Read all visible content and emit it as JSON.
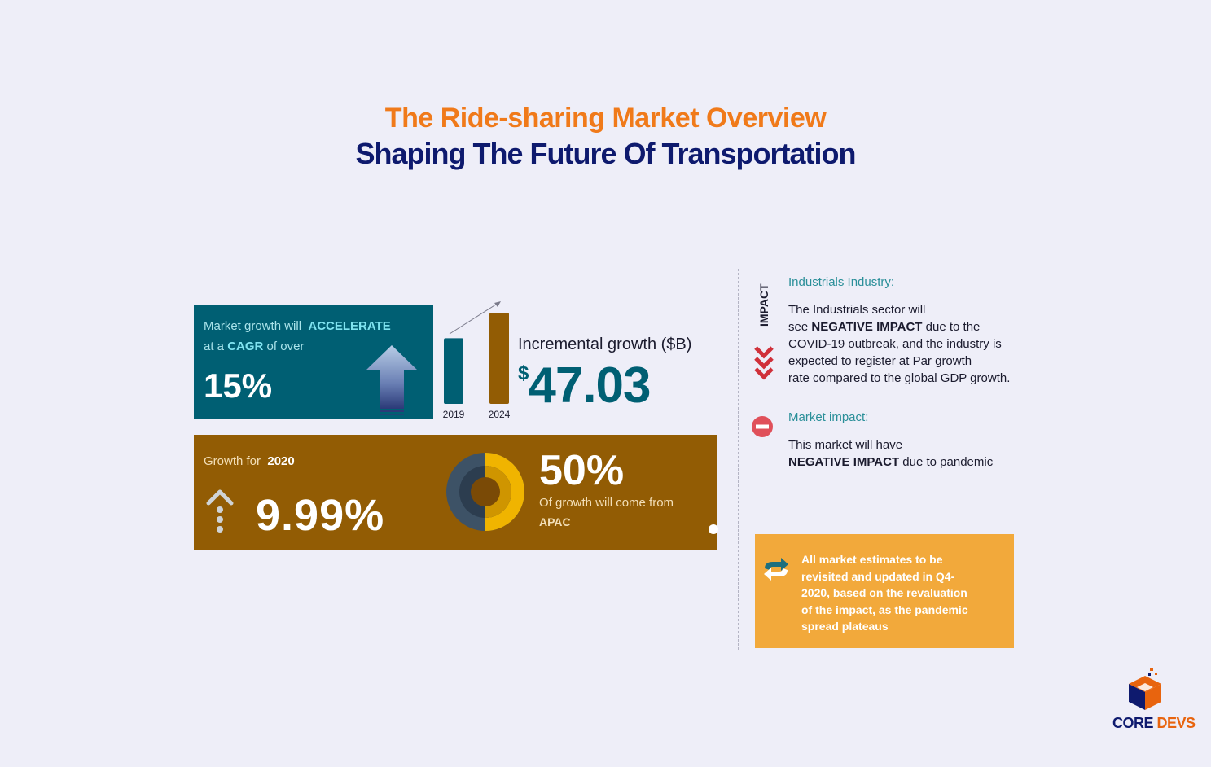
{
  "header": {
    "title": "The Ride-sharing Market Overview",
    "subtitle": "Shaping The Future Of Transportation"
  },
  "cagr_card": {
    "line1_prefix": "Market growth will",
    "line1_strong": "ACCELERATE",
    "line2_prefix": "at a",
    "line2_strong": "CAGR",
    "line2_suffix": "of over",
    "value": "15%"
  },
  "chart_data": {
    "type": "bar",
    "categories": [
      "2019",
      "2024"
    ],
    "values": [
      0.72,
      1.0
    ],
    "colors": [
      "#005f73",
      "#925c04"
    ],
    "xlabel": "",
    "ylabel": "",
    "title": ""
  },
  "incremental": {
    "label": "Incremental growth ($B)",
    "currency": "$",
    "value": "47.03"
  },
  "growth_card": {
    "label_prefix": "Growth for",
    "label_strong": "2020",
    "value": "9.99%",
    "share_value": "50%",
    "share_text": "Of growth will come from",
    "share_region": "APAC",
    "share_fraction": 0.5
  },
  "impact": {
    "side_label": "IMPACT",
    "industry_heading": "Industrials Industry:",
    "industry_lines": [
      "The Industrials sector will",
      "due to the",
      "COVID-19 outbreak, and the industry is",
      "expected to register at Par growth",
      "rate compared to the global GDP growth."
    ],
    "industry_line2_prefix": "see",
    "negative_label": "NEGATIVE IMPACT",
    "market_heading": "Market impact:",
    "market_line1": "This market will have",
    "market_line2_suffix": "due to pandemic"
  },
  "note": {
    "lines": [
      "All market estimates to be",
      "revisited and updated in Q4-",
      "2020, based on the revaluation",
      "of the impact, as the pandemic",
      "spread plateaus"
    ]
  },
  "logo": {
    "word1": "CORE",
    "word2": "DEVS"
  },
  "colors": {
    "teal": "#005f73",
    "brown": "#925c04",
    "orange": "#f07a1a",
    "navy": "#0e1a6e",
    "note_bg": "#f2a93b"
  }
}
